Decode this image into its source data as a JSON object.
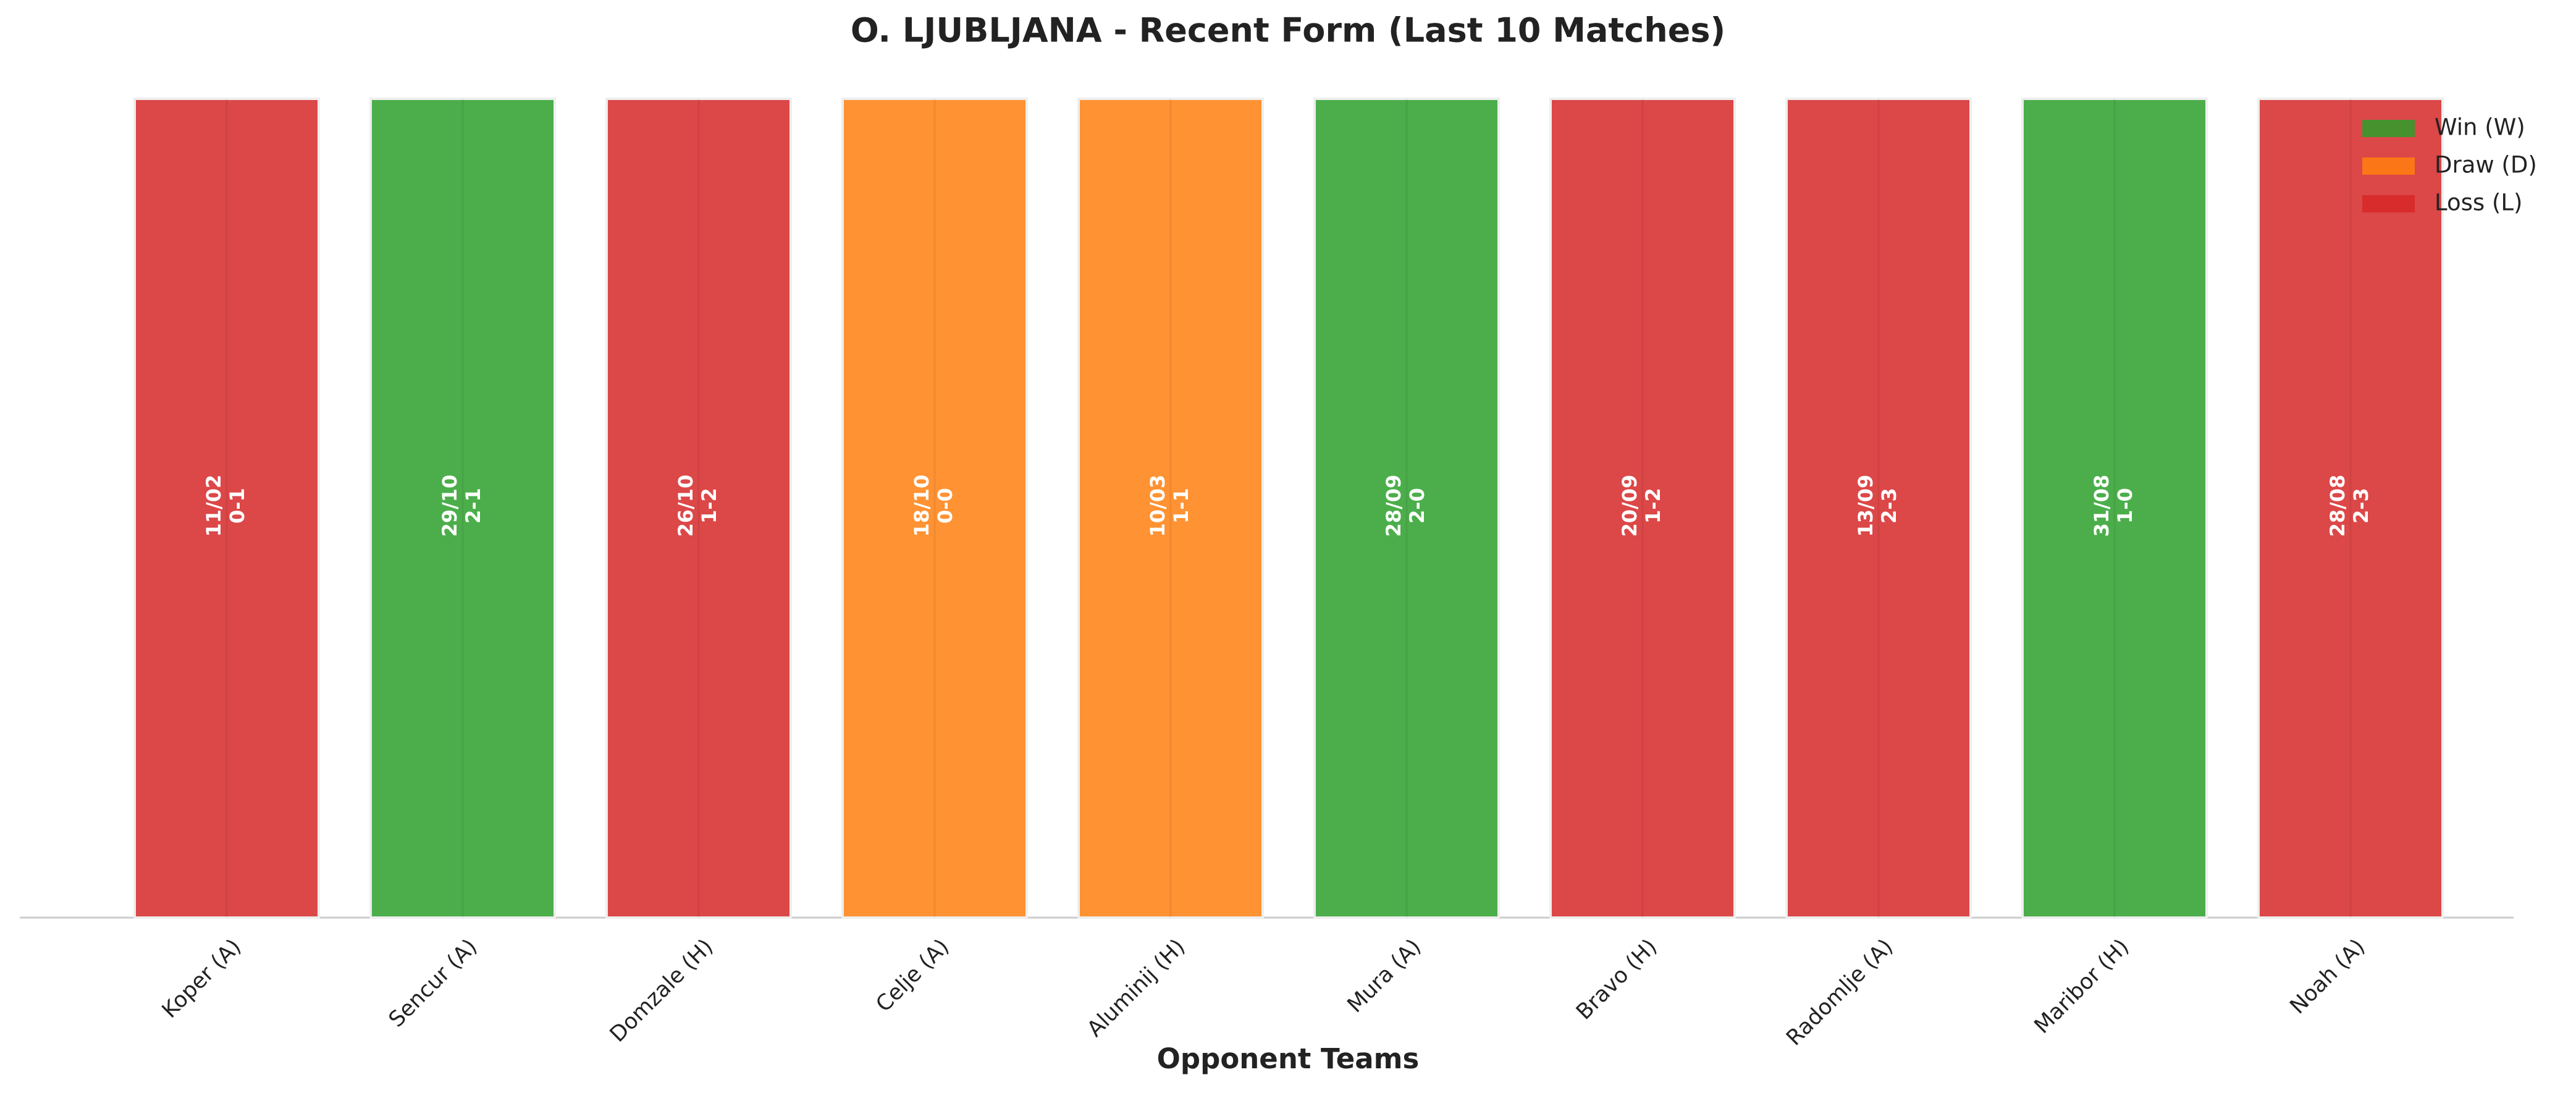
{
  "chart_data": {
    "type": "bar",
    "title": "O. LJUBLJANA - Recent Form (Last 10 Matches)",
    "xlabel": "Opponent Teams",
    "categories": [
      "Koper (A)",
      "Sencur (A)",
      "Domzale (H)",
      "Celje (A)",
      "Aluminij (H)",
      "Mura (A)",
      "Bravo (H)",
      "Radomlje (A)",
      "Maribor (H)",
      "Noah (A)"
    ],
    "values": [
      1,
      1,
      1,
      1,
      1,
      1,
      1,
      1,
      1,
      1
    ],
    "dates": [
      "11/02",
      "29/10",
      "26/10",
      "18/10",
      "10/03",
      "28/09",
      "20/09",
      "13/09",
      "31/08",
      "28/08"
    ],
    "scores": [
      "0-1",
      "2-1",
      "1-2",
      "0-0",
      "1-1",
      "2-0",
      "1-2",
      "2-3",
      "1-0",
      "2-3"
    ],
    "bar_colors": [
      "#d62728",
      "#2ca02c",
      "#d62728",
      "#ff7f0e",
      "#ff7f0e",
      "#2ca02c",
      "#d62728",
      "#d62728",
      "#2ca02c",
      "#d62728"
    ],
    "ylim": [
      0,
      1
    ],
    "legend": [
      {
        "name": "Win (W)",
        "color": "#2ca02c"
      },
      {
        "name": "Draw (D)",
        "color": "#ff7f0e"
      },
      {
        "name": "Loss (L)",
        "color": "#d62728"
      }
    ],
    "legend_position": "upper right"
  }
}
